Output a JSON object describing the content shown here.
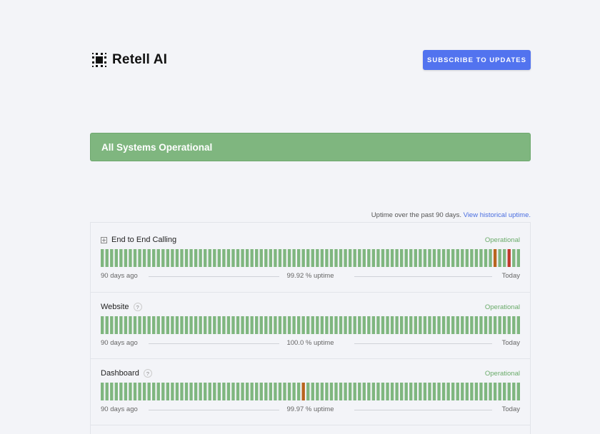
{
  "header": {
    "brand": "Retell AI",
    "subscribe_label": "SUBSCRIBE TO UPDATES"
  },
  "banner": {
    "text": "All Systems Operational"
  },
  "uptime_note": {
    "text": "Uptime over the past 90 days.",
    "link": "View historical uptime."
  },
  "colors": {
    "operational": "#7fb67f",
    "outage": "#c0392b",
    "partial": "#b8641e",
    "accent": "#5273ef"
  },
  "components": [
    {
      "name": "End to End Calling",
      "expandable": true,
      "status": "Operational",
      "left_label": "90 days ago",
      "uptime": "99.92 % uptime",
      "right_label": "Today",
      "incidents": {
        "84": "partial",
        "87": "outage"
      }
    },
    {
      "name": "Website",
      "help": "?",
      "status": "Operational",
      "left_label": "90 days ago",
      "uptime": "100.0 % uptime",
      "right_label": "Today",
      "incidents": {}
    },
    {
      "name": "Dashboard",
      "help": "?",
      "status": "Operational",
      "left_label": "90 days ago",
      "uptime": "99.97 % uptime",
      "right_label": "Today",
      "incidents": {
        "43": "partial"
      }
    }
  ]
}
